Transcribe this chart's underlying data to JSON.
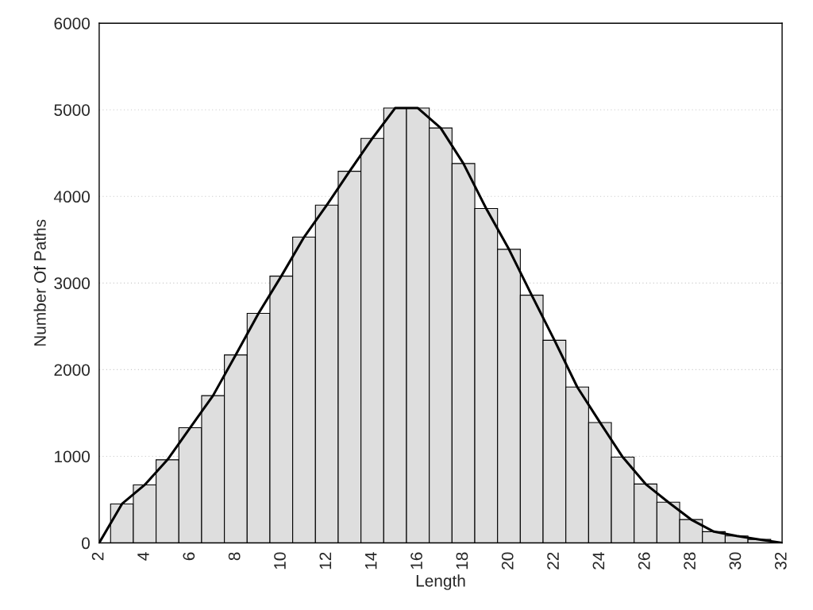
{
  "chart_data": {
    "type": "histogram",
    "xlabel": "Length",
    "ylabel": "Number Of Paths",
    "bins": [
      2.5,
      3.5,
      4.5,
      5.5,
      6.5,
      7.5,
      8.5,
      9.5,
      10.5,
      11.5,
      12.5,
      13.5,
      14.5,
      15.5,
      16.5,
      17.5,
      18.5,
      19.5,
      20.5,
      21.5,
      22.5,
      23.5,
      24.5,
      25.5,
      26.5,
      27.5,
      28.5,
      29.5,
      30.5,
      31.5
    ],
    "values": [
      450,
      670,
      960,
      1330,
      1700,
      2170,
      2650,
      3080,
      3530,
      3900,
      4290,
      4670,
      5020,
      5020,
      4790,
      4380,
      3860,
      3390,
      2860,
      2340,
      1800,
      1390,
      990,
      680,
      470,
      270,
      130,
      80,
      40
    ],
    "color": "#dedede",
    "series": [
      {
        "type": "line",
        "color": "#000000",
        "x": [
          2,
          3,
          4,
          5,
          6,
          7,
          8,
          9,
          10,
          11,
          12,
          13,
          14,
          15,
          16,
          17,
          18,
          19,
          20,
          21,
          22,
          23,
          24,
          25,
          26,
          27,
          28,
          29,
          30,
          31,
          32
        ],
        "values": [
          0,
          450,
          670,
          960,
          1330,
          1700,
          2170,
          2650,
          3080,
          3530,
          3900,
          4290,
          4670,
          5020,
          5020,
          4790,
          4380,
          3860,
          3390,
          2860,
          2340,
          1800,
          1390,
          990,
          680,
          470,
          270,
          130,
          80,
          40,
          0
        ]
      }
    ],
    "xlim": [
      2,
      32
    ],
    "xticks": [
      2,
      4,
      6,
      8,
      10,
      12,
      14,
      16,
      18,
      20,
      22,
      24,
      26,
      28,
      30,
      32
    ],
    "ylim": [
      0,
      6000
    ],
    "yticks": [
      0,
      1000,
      2000,
      3000,
      4000,
      5000,
      6000
    ],
    "grid": "y"
  }
}
